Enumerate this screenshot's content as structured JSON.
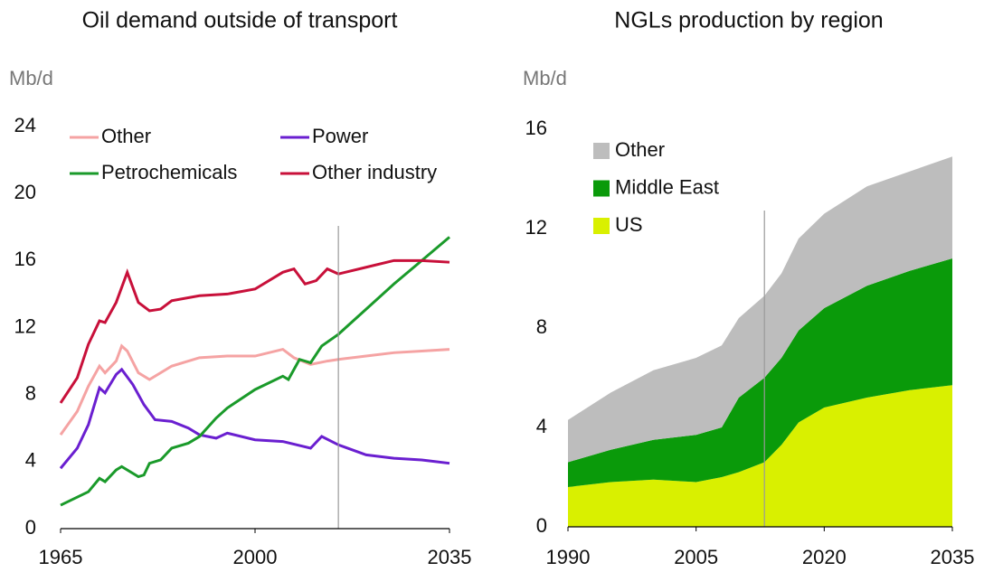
{
  "chart_data": [
    {
      "type": "line",
      "title": "Oil demand outside of transport",
      "y_label": "Mb/d",
      "xlim": [
        1965,
        2035
      ],
      "xticks": [
        1965,
        2000,
        2035
      ],
      "ylim": [
        0,
        24
      ],
      "yticks": [
        0,
        4,
        8,
        12,
        16,
        20,
        24
      ],
      "marker_x": 2015,
      "series": [
        {
          "name": "Other",
          "color": "#f5a3a3",
          "x": [
            1965,
            1968,
            1970,
            1972,
            1973,
            1975,
            1976,
            1977,
            1979,
            1981,
            1985,
            1990,
            1995,
            2000,
            2005,
            2007,
            2010,
            2013,
            2015,
            2020,
            2025,
            2030,
            2035
          ],
          "values": [
            5.6,
            7,
            8.5,
            9.7,
            9.3,
            10,
            10.9,
            10.6,
            9.3,
            8.9,
            9.7,
            10.2,
            10.3,
            10.3,
            10.7,
            10.2,
            9.8,
            10,
            10.1,
            10.3,
            10.5,
            10.6,
            10.7
          ]
        },
        {
          "name": "Power",
          "color": "#6a1fd0",
          "x": [
            1965,
            1968,
            1970,
            1972,
            1973,
            1975,
            1976,
            1978,
            1980,
            1982,
            1985,
            1988,
            1990,
            1993,
            1995,
            2000,
            2005,
            2010,
            2012,
            2015,
            2020,
            2025,
            2030,
            2035
          ],
          "values": [
            3.6,
            4.8,
            6.2,
            8.4,
            8.1,
            9.2,
            9.5,
            8.6,
            7.4,
            6.5,
            6.4,
            6,
            5.6,
            5.4,
            5.7,
            5.3,
            5.2,
            4.8,
            5.5,
            5,
            4.4,
            4.2,
            4.1,
            3.9
          ]
        },
        {
          "name": "Petrochemicals",
          "color": "#1a9a2a",
          "x": [
            1965,
            1970,
            1972,
            1973,
            1975,
            1976,
            1979,
            1980,
            1981,
            1983,
            1985,
            1988,
            1990,
            1993,
            1995,
            2000,
            2005,
            2006,
            2008,
            2010,
            2012,
            2015,
            2020,
            2025,
            2030,
            2035
          ],
          "values": [
            1.4,
            2.2,
            3,
            2.8,
            3.5,
            3.7,
            3.1,
            3.2,
            3.9,
            4.1,
            4.8,
            5.1,
            5.5,
            6.6,
            7.2,
            8.3,
            9.1,
            8.9,
            10.1,
            9.9,
            10.9,
            11.6,
            13.1,
            14.6,
            16,
            17.4
          ]
        },
        {
          "name": "Other industry",
          "color": "#c8103a",
          "x": [
            1965,
            1968,
            1970,
            1972,
            1973,
            1975,
            1977,
            1979,
            1981,
            1983,
            1985,
            1990,
            1995,
            2000,
            2005,
            2007,
            2009,
            2011,
            2013,
            2015,
            2020,
            2025,
            2030,
            2035
          ],
          "values": [
            7.5,
            9,
            11,
            12.4,
            12.3,
            13.5,
            15.3,
            13.5,
            13,
            13.1,
            13.6,
            13.9,
            14,
            14.3,
            15.3,
            15.5,
            14.6,
            14.8,
            15.5,
            15.2,
            15.6,
            16,
            16,
            15.9
          ]
        }
      ]
    },
    {
      "type": "stacked_area",
      "title": "NGLs production by region",
      "y_label": "Mb/d",
      "xlim": [
        1990,
        2035
      ],
      "xticks": [
        1990,
        2005,
        2020,
        2035
      ],
      "ylim": [
        0,
        16
      ],
      "yticks": [
        0,
        4,
        8,
        12,
        16
      ],
      "marker_x": 2013,
      "x": [
        1990,
        1995,
        2000,
        2005,
        2008,
        2010,
        2013,
        2015,
        2017,
        2020,
        2025,
        2030,
        2035
      ],
      "series": [
        {
          "name": "US",
          "color": "#d9f000",
          "values": [
            1.6,
            1.8,
            1.9,
            1.8,
            2.0,
            2.2,
            2.6,
            3.3,
            4.2,
            4.8,
            5.2,
            5.5,
            5.7
          ]
        },
        {
          "name": "Middle East",
          "color": "#0a9a0a",
          "values": [
            1.0,
            1.3,
            1.6,
            1.9,
            2.0,
            3.0,
            3.4,
            3.5,
            3.7,
            4.0,
            4.5,
            4.8,
            5.1
          ]
        },
        {
          "name": "Other",
          "color": "#bdbdbd",
          "values": [
            1.7,
            2.3,
            2.8,
            3.1,
            3.3,
            3.2,
            3.3,
            3.4,
            3.7,
            3.8,
            4.0,
            4.0,
            4.1
          ]
        }
      ]
    }
  ]
}
